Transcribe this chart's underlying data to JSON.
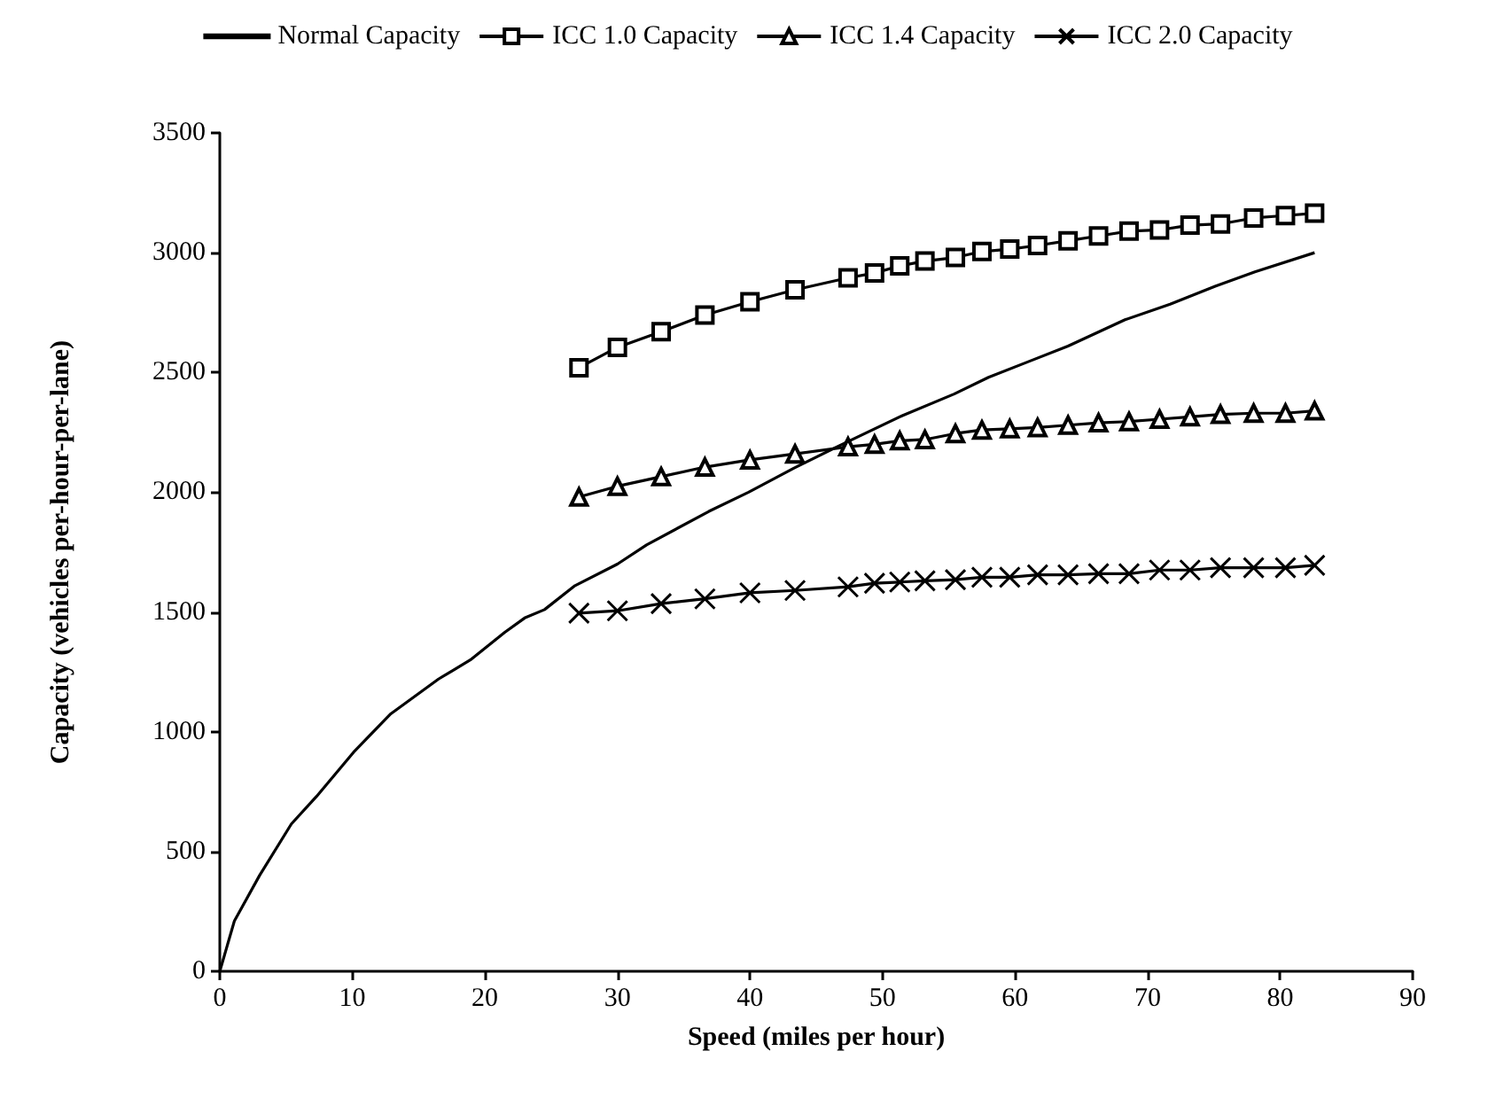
{
  "chart_data": {
    "type": "line",
    "xlabel": "Speed (miles per hour)",
    "ylabel": "Capacity (vehicles per-hour-per-lane)",
    "xlim": [
      0,
      90
    ],
    "xticks": [
      0,
      10,
      20,
      30,
      40,
      50,
      60,
      70,
      80,
      90
    ],
    "ylim": [
      0,
      3500
    ],
    "yticks": [
      0,
      500,
      1000,
      1500,
      2000,
      2500,
      3000,
      3500
    ],
    "grid": false,
    "legend": "top",
    "line_style": "solid",
    "series": [
      {
        "name": "Normal Capacity",
        "color": "#000000",
        "marker": "none",
        "x": [
          0,
          1.1,
          3.0,
          5.4,
          7.3,
          10.1,
          12.9,
          16.5,
          18.9,
          21.5,
          23.0,
          24.5,
          26.8,
          30.0,
          32.2,
          36.9,
          39.9,
          43.3,
          46.4,
          51.5,
          55.4,
          58.0,
          61.0,
          64.0,
          68.3,
          71.7,
          75.1,
          78.1,
          82.6
        ],
        "values": [
          0,
          210,
          400,
          615,
          730,
          915,
          1075,
          1220,
          1300,
          1415,
          1475,
          1510,
          1610,
          1700,
          1780,
          1920,
          2000,
          2100,
          2185,
          2320,
          2410,
          2480,
          2545,
          2610,
          2720,
          2785,
          2860,
          2920,
          3000
        ]
      },
      {
        "name": "ICC 1.0 Capacity",
        "color": "#000000",
        "marker": "square",
        "x": [
          27.1,
          30.0,
          33.3,
          36.6,
          40.0,
          43.4,
          47.4,
          49.4,
          51.3,
          53.2,
          55.5,
          57.5,
          59.6,
          61.7,
          64.0,
          66.3,
          68.6,
          70.9,
          73.2,
          75.5,
          78.0,
          80.4,
          82.6
        ],
        "values": [
          2520,
          2605,
          2670,
          2740,
          2795,
          2845,
          2895,
          2915,
          2945,
          2965,
          2980,
          3005,
          3015,
          3030,
          3050,
          3070,
          3090,
          3095,
          3115,
          3120,
          3145,
          3155,
          3165
        ]
      },
      {
        "name": "ICC 1.4 Capacity",
        "color": "#000000",
        "marker": "triangle",
        "x": [
          27.1,
          30.0,
          33.3,
          36.6,
          40.0,
          43.4,
          47.4,
          49.4,
          51.3,
          53.2,
          55.5,
          57.5,
          59.6,
          61.7,
          64.0,
          66.3,
          68.6,
          70.9,
          73.2,
          75.5,
          78.0,
          80.4,
          82.6
        ],
        "values": [
          1980,
          2025,
          2065,
          2105,
          2135,
          2160,
          2190,
          2200,
          2215,
          2220,
          2245,
          2260,
          2265,
          2270,
          2280,
          2290,
          2295,
          2305,
          2315,
          2325,
          2330,
          2330,
          2340
        ]
      },
      {
        "name": "ICC 2.0 Capacity",
        "color": "#000000",
        "marker": "cross",
        "x": [
          27.1,
          30.0,
          33.3,
          36.6,
          40.0,
          43.4,
          47.4,
          49.4,
          51.3,
          53.2,
          55.5,
          57.5,
          59.6,
          61.7,
          64.0,
          66.3,
          68.6,
          70.9,
          73.2,
          75.5,
          78.0,
          80.4,
          82.6
        ],
        "values": [
          1495,
          1505,
          1535,
          1555,
          1580,
          1590,
          1605,
          1620,
          1625,
          1630,
          1635,
          1645,
          1645,
          1655,
          1655,
          1660,
          1660,
          1675,
          1675,
          1685,
          1685,
          1685,
          1695
        ]
      }
    ]
  }
}
